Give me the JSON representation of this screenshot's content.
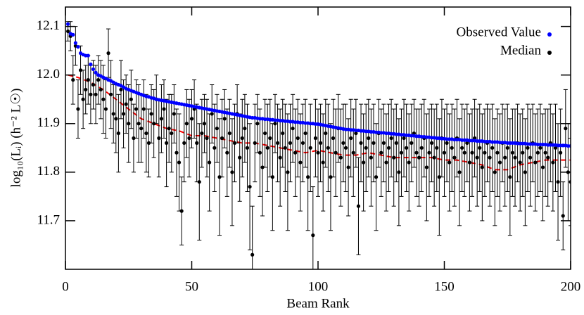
{
  "chart_data": {
    "type": "scatter",
    "xlabel": "Beam Rank",
    "ylabel": "log₁₀(Lᵢ) (h⁻² L☉)",
    "xlim": [
      0,
      200
    ],
    "ylim": [
      11.6,
      12.14
    ],
    "xticks": [
      0,
      50,
      100,
      150,
      200
    ],
    "yticks": [
      11.7,
      11.8,
      11.9,
      {
        "value": 12,
        "label": "12.0"
      },
      12.1
    ],
    "legend": "upper right",
    "x": [
      1,
      2,
      3,
      4,
      5,
      6,
      7,
      8,
      9,
      10,
      11,
      12,
      13,
      14,
      15,
      16,
      17,
      18,
      19,
      20,
      21,
      22,
      23,
      24,
      25,
      26,
      27,
      28,
      29,
      30,
      31,
      32,
      33,
      34,
      35,
      36,
      37,
      38,
      39,
      40,
      41,
      42,
      43,
      44,
      45,
      46,
      47,
      48,
      49,
      50,
      51,
      52,
      53,
      54,
      55,
      56,
      57,
      58,
      59,
      60,
      61,
      62,
      63,
      64,
      65,
      66,
      67,
      68,
      69,
      70,
      71,
      72,
      73,
      74,
      75,
      76,
      77,
      78,
      79,
      80,
      81,
      82,
      83,
      84,
      85,
      86,
      87,
      88,
      89,
      90,
      91,
      92,
      93,
      94,
      95,
      96,
      97,
      98,
      99,
      100,
      101,
      102,
      103,
      104,
      105,
      106,
      107,
      108,
      109,
      110,
      111,
      112,
      113,
      114,
      115,
      116,
      117,
      118,
      119,
      120,
      121,
      122,
      123,
      124,
      125,
      126,
      127,
      128,
      129,
      130,
      131,
      132,
      133,
      134,
      135,
      136,
      137,
      138,
      139,
      140,
      141,
      142,
      143,
      144,
      145,
      146,
      147,
      148,
      149,
      150,
      151,
      152,
      153,
      154,
      155,
      156,
      157,
      158,
      159,
      160,
      161,
      162,
      163,
      164,
      165,
      166,
      167,
      168,
      169,
      170,
      171,
      172,
      173,
      174,
      175,
      176,
      177,
      178,
      179,
      180,
      181,
      182,
      183,
      184,
      185,
      186,
      187,
      188,
      189,
      190,
      191,
      192,
      193,
      194,
      195,
      196,
      197,
      198,
      199,
      200
    ],
    "series": [
      {
        "name": "Median",
        "color": "#000000",
        "values": [
          12.09,
          12.08,
          11.99,
          12.06,
          11.93,
          12.01,
          11.95,
          11.97,
          11.99,
          11.96,
          11.98,
          11.96,
          11.99,
          11.97,
          11.95,
          11.93,
          12.045,
          11.96,
          11.92,
          11.91,
          11.88,
          11.97,
          11.92,
          11.94,
          11.9,
          11.95,
          11.87,
          11.93,
          11.9,
          11.89,
          11.93,
          11.88,
          11.86,
          11.92,
          11.9,
          11.95,
          11.87,
          11.91,
          11.93,
          11.86,
          11.89,
          11.88,
          11.92,
          11.84,
          11.82,
          11.72,
          11.86,
          11.9,
          11.87,
          11.91,
          11.93,
          11.86,
          11.78,
          11.88,
          11.9,
          11.87,
          11.82,
          11.92,
          11.85,
          11.89,
          11.79,
          11.87,
          11.91,
          11.84,
          11.88,
          11.8,
          11.86,
          11.92,
          11.83,
          11.87,
          11.89,
          11.85,
          11.77,
          11.63,
          11.86,
          11.9,
          11.84,
          11.81,
          11.88,
          11.85,
          11.87,
          11.79,
          11.9,
          11.86,
          11.83,
          11.88,
          11.85,
          11.8,
          11.86,
          11.89,
          11.84,
          11.87,
          11.82,
          11.86,
          11.88,
          11.79,
          11.85,
          11.67,
          11.87,
          11.84,
          11.86,
          11.82,
          11.88,
          11.85,
          11.79,
          11.87,
          11.84,
          11.89,
          11.83,
          11.86,
          11.85,
          11.81,
          11.87,
          11.84,
          11.88,
          11.73,
          11.86,
          11.82,
          11.85,
          11.87,
          11.83,
          11.86,
          11.79,
          11.88,
          11.84,
          11.86,
          11.82,
          11.85,
          11.87,
          11.83,
          11.86,
          11.8,
          11.84,
          11.87,
          11.85,
          11.82,
          11.86,
          11.88,
          11.84,
          11.83,
          11.85,
          11.87,
          11.81,
          11.84,
          11.86,
          11.83,
          11.85,
          11.79,
          11.87,
          11.84,
          11.86,
          11.82,
          11.85,
          11.83,
          11.87,
          11.8,
          11.85,
          11.84,
          11.86,
          11.82,
          11.84,
          11.87,
          11.83,
          11.85,
          11.81,
          11.84,
          11.86,
          11.83,
          11.85,
          11.8,
          11.84,
          11.82,
          11.86,
          11.83,
          11.85,
          11.79,
          11.84,
          11.83,
          11.86,
          11.82,
          11.84,
          11.8,
          11.85,
          11.83,
          11.86,
          11.82,
          11.84,
          11.85,
          11.81,
          11.84,
          11.83,
          11.86,
          11.82,
          11.85,
          11.78,
          11.84,
          11.71,
          11.89,
          11.8,
          11.78
        ],
        "errors": [
          0.02,
          0.03,
          0.05,
          0.04,
          0.06,
          0.05,
          0.06,
          0.05,
          0.05,
          0.06,
          0.05,
          0.06,
          0.05,
          0.06,
          0.07,
          0.06,
          0.05,
          0.07,
          0.06,
          0.07,
          0.08,
          0.06,
          0.07,
          0.06,
          0.08,
          0.06,
          0.07,
          0.06,
          0.08,
          0.07,
          0.06,
          0.08,
          0.07,
          0.06,
          0.07,
          0.05,
          0.08,
          0.07,
          0.06,
          0.09,
          0.07,
          0.08,
          0.06,
          0.09,
          0.1,
          0.07,
          0.08,
          0.07,
          0.08,
          0.06,
          0.06,
          0.08,
          0.12,
          0.07,
          0.06,
          0.08,
          0.1,
          0.06,
          0.09,
          0.07,
          0.12,
          0.08,
          0.06,
          0.09,
          0.07,
          0.11,
          0.08,
          0.06,
          0.09,
          0.08,
          0.07,
          0.09,
          0.13,
          0.1,
          0.08,
          0.06,
          0.09,
          0.1,
          0.07,
          0.09,
          0.08,
          0.11,
          0.06,
          0.08,
          0.1,
          0.07,
          0.09,
          0.12,
          0.08,
          0.07,
          0.09,
          0.08,
          0.1,
          0.08,
          0.07,
          0.11,
          0.09,
          0.1,
          0.08,
          0.09,
          0.08,
          0.1,
          0.07,
          0.09,
          0.11,
          0.08,
          0.09,
          0.07,
          0.1,
          0.08,
          0.09,
          0.1,
          0.08,
          0.09,
          0.07,
          0.1,
          0.08,
          0.1,
          0.09,
          0.08,
          0.1,
          0.08,
          0.11,
          0.07,
          0.09,
          0.08,
          0.1,
          0.09,
          0.08,
          0.1,
          0.08,
          0.11,
          0.09,
          0.08,
          0.09,
          0.1,
          0.08,
          0.07,
          0.09,
          0.1,
          0.09,
          0.08,
          0.11,
          0.09,
          0.08,
          0.1,
          0.09,
          0.12,
          0.08,
          0.09,
          0.08,
          0.1,
          0.09,
          0.1,
          0.08,
          0.11,
          0.09,
          0.09,
          0.08,
          0.1,
          0.09,
          0.08,
          0.1,
          0.09,
          0.11,
          0.09,
          0.08,
          0.1,
          0.09,
          0.11,
          0.09,
          0.1,
          0.08,
          0.1,
          0.09,
          0.12,
          0.09,
          0.1,
          0.08,
          0.1,
          0.09,
          0.11,
          0.09,
          0.1,
          0.08,
          0.1,
          0.09,
          0.09,
          0.11,
          0.09,
          0.1,
          0.08,
          0.1,
          0.09,
          0.12,
          0.09,
          0.07,
          0.08,
          0.1,
          0.09
        ]
      },
      {
        "name": "Observed Value",
        "color": "#0000ff",
        "values": [
          12.105,
          12.085,
          12.083,
          12.066,
          12.058,
          12.045,
          12.042,
          12.04,
          12.04,
          12.022,
          12.012,
          12.005,
          12.0,
          11.998,
          11.995,
          11.993,
          11.99,
          11.988,
          11.985,
          11.982,
          11.98,
          11.978,
          11.975,
          11.972,
          11.97,
          11.968,
          11.966,
          11.964,
          11.962,
          11.96,
          11.958,
          11.956,
          11.955,
          11.953,
          11.952,
          11.95,
          11.949,
          11.948,
          11.947,
          11.946,
          11.945,
          11.944,
          11.943,
          11.942,
          11.941,
          11.94,
          11.939,
          11.938,
          11.937,
          11.936,
          11.935,
          11.934,
          11.933,
          11.932,
          11.931,
          11.93,
          11.929,
          11.928,
          11.927,
          11.926,
          11.925,
          11.924,
          11.923,
          11.922,
          11.921,
          11.92,
          11.919,
          11.918,
          11.917,
          11.916,
          11.915,
          11.914,
          11.913,
          11.912,
          11.912,
          11.911,
          11.91,
          11.91,
          11.909,
          11.909,
          11.908,
          11.908,
          11.907,
          11.907,
          11.906,
          11.906,
          11.905,
          11.905,
          11.904,
          11.904,
          11.903,
          11.903,
          11.902,
          11.902,
          11.901,
          11.901,
          11.9,
          11.9,
          11.899,
          11.899,
          11.898,
          11.897,
          11.896,
          11.895,
          11.894,
          11.893,
          11.892,
          11.891,
          11.89,
          11.889,
          11.888,
          11.888,
          11.887,
          11.887,
          11.886,
          11.886,
          11.885,
          11.885,
          11.884,
          11.884,
          11.883,
          11.883,
          11.882,
          11.882,
          11.881,
          11.881,
          11.88,
          11.88,
          11.879,
          11.879,
          11.878,
          11.878,
          11.877,
          11.877,
          11.876,
          11.876,
          11.875,
          11.875,
          11.874,
          11.874,
          11.873,
          11.873,
          11.872,
          11.872,
          11.871,
          11.871,
          11.87,
          11.87,
          11.869,
          11.869,
          11.868,
          11.868,
          11.868,
          11.867,
          11.867,
          11.867,
          11.866,
          11.866,
          11.866,
          11.865,
          11.865,
          11.865,
          11.864,
          11.864,
          11.864,
          11.863,
          11.863,
          11.863,
          11.862,
          11.862,
          11.862,
          11.861,
          11.861,
          11.861,
          11.86,
          11.86,
          11.86,
          11.86,
          11.859,
          11.859,
          11.859,
          11.859,
          11.858,
          11.858,
          11.858,
          11.858,
          11.857,
          11.857,
          11.857,
          11.857,
          11.856,
          11.856,
          11.856,
          11.856,
          11.855,
          11.855,
          11.855,
          11.855,
          11.854,
          11.854
        ]
      }
    ],
    "median_line": {
      "color": "#ff0000",
      "x": [
        1,
        5,
        10,
        15,
        20,
        25,
        30,
        35,
        40,
        45,
        50,
        55,
        60,
        65,
        70,
        75,
        80,
        85,
        90,
        95,
        100,
        105,
        110,
        115,
        120,
        125,
        130,
        135,
        140,
        145,
        150,
        155,
        160,
        165,
        170,
        175,
        180,
        185,
        190,
        195,
        200
      ],
      "values": [
        12.0,
        11.995,
        11.985,
        11.97,
        11.95,
        11.93,
        11.91,
        11.9,
        11.89,
        11.885,
        11.875,
        11.875,
        11.87,
        11.865,
        11.86,
        11.86,
        11.855,
        11.85,
        11.845,
        11.84,
        11.845,
        11.84,
        11.835,
        11.835,
        11.84,
        11.835,
        11.83,
        11.83,
        11.83,
        11.83,
        11.825,
        11.825,
        11.82,
        11.815,
        11.805,
        11.805,
        11.815,
        11.82,
        11.825,
        11.825,
        11.825
      ]
    }
  }
}
